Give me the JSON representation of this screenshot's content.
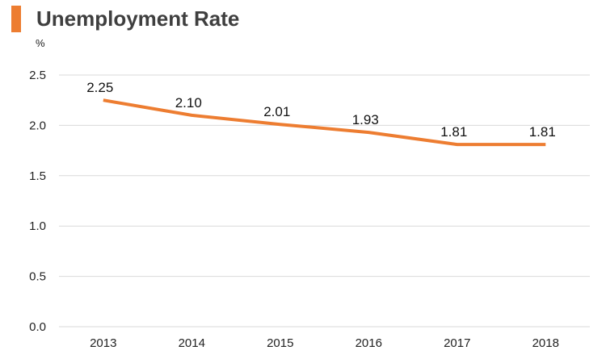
{
  "header": {
    "title": "Unemployment Rate"
  },
  "colors": {
    "accent": "#ED7D31",
    "grid": "#D9D9D9",
    "title_text": "#3F3F3F"
  },
  "chart_data": {
    "type": "line",
    "title": "Unemployment Rate",
    "ylabel": "%",
    "xlabel": "",
    "categories": [
      "2013",
      "2014",
      "2015",
      "2016",
      "2017",
      "2018"
    ],
    "series": [
      {
        "values": [
          2.25,
          2.1,
          2.01,
          1.93,
          1.81,
          1.81
        ],
        "data_labels": [
          "2.25",
          "2.10",
          "2.01",
          "1.93",
          "1.81",
          "1.81"
        ],
        "color": "#ED7D31"
      }
    ],
    "ylim": [
      0,
      2.5
    ],
    "yticks": [
      0,
      0.5,
      1,
      1.5,
      2,
      2.5
    ],
    "ytick_labels": [
      "0.0",
      "0.5",
      "1.0",
      "1.5",
      "2.0",
      "2.5"
    ],
    "grid": true,
    "legend": "none"
  }
}
